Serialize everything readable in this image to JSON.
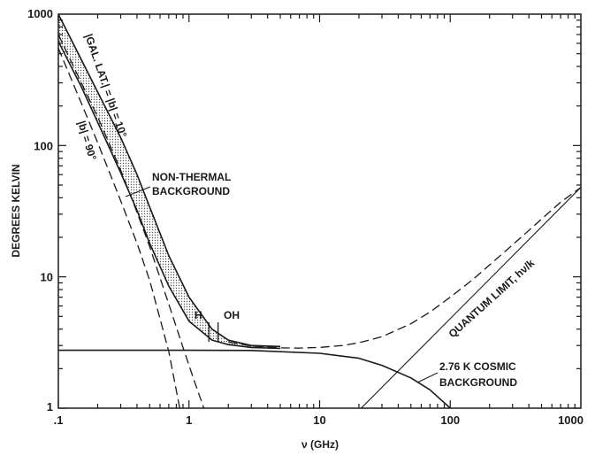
{
  "chart_data": {
    "type": "line",
    "xscale": "log",
    "yscale": "log",
    "xlim": [
      0.1,
      1000
    ],
    "ylim": [
      1,
      1000
    ],
    "xlabel": "ν (GHz)",
    "ylabel": "DEGREES KELVIN",
    "xticks": [
      {
        "value": 0.1,
        "label": ".1"
      },
      {
        "value": 1,
        "label": "1"
      },
      {
        "value": 10,
        "label": "10"
      },
      {
        "value": 100,
        "label": "100"
      },
      {
        "value": 1000,
        "label": "1000"
      }
    ],
    "yticks": [
      {
        "value": 1,
        "label": "1"
      },
      {
        "value": 10,
        "label": "10"
      },
      {
        "value": 100,
        "label": "100"
      },
      {
        "value": 1000,
        "label": "1000"
      }
    ],
    "grid": false,
    "series": [
      {
        "name": "|GAL. LAT.| = |b| = 10°",
        "style": "solid",
        "x": [
          0.1,
          0.15,
          0.2,
          0.3,
          0.4,
          0.5,
          0.7,
          1,
          1.5,
          2,
          3,
          5
        ],
        "y": [
          1000,
          450,
          255,
          115,
          60,
          34,
          14.5,
          7,
          4,
          3.3,
          3.0,
          2.95
        ]
      },
      {
        "name": "|b| = 90°",
        "style": "solid",
        "x": [
          0.1,
          0.15,
          0.2,
          0.3,
          0.4,
          0.5,
          0.7,
          1,
          1.5,
          2,
          3,
          5
        ],
        "y": [
          620,
          280,
          150,
          62,
          32,
          18,
          8.5,
          4.6,
          3.3,
          3.05,
          2.9,
          2.85
        ]
      },
      {
        "name": "NON-THERMAL BACKGROUND",
        "style": "dashed",
        "x": [
          0.1,
          0.15,
          0.2,
          0.3,
          0.4,
          0.5,
          0.7,
          0.9,
          1.1,
          1.3
        ],
        "y": [
          700,
          300,
          165,
          65,
          31,
          17,
          6.2,
          2.9,
          1.6,
          1
        ]
      },
      {
        "name": "NON-THERMAL BACKGROUND",
        "style": "dashed",
        "x": [
          0.1,
          0.15,
          0.2,
          0.3,
          0.4,
          0.5,
          0.6,
          0.7,
          0.85
        ],
        "y": [
          550,
          210,
          105,
          38,
          18,
          9.4,
          4.8,
          2.7,
          1
        ]
      },
      {
        "name": "2.76 K COSMIC BACKGROUND",
        "style": "solid",
        "x": [
          0.1,
          1,
          3,
          10,
          20,
          30,
          50,
          70,
          100
        ],
        "y": [
          2.76,
          2.76,
          2.75,
          2.62,
          2.4,
          2.12,
          1.7,
          1.38,
          1.0
        ]
      },
      {
        "name": "QUANTUM LIMIT, hν/k",
        "style": "solid",
        "x": [
          20.8,
          1000
        ],
        "y": [
          1.0,
          48
        ]
      },
      {
        "name": "",
        "style": "dashed",
        "x": [
          2,
          3,
          5,
          7,
          10,
          15,
          20,
          30,
          50,
          70,
          100,
          150,
          200,
          300,
          500,
          700,
          1000
        ],
        "y": [
          3.2,
          2.98,
          2.88,
          2.87,
          2.9,
          3.0,
          3.15,
          3.5,
          4.4,
          5.4,
          7.0,
          9.6,
          12.3,
          17.5,
          27.5,
          37,
          48
        ]
      }
    ],
    "markers": [
      {
        "label": "H",
        "x": 1.42
      },
      {
        "label": "OH",
        "x": 1.67
      }
    ],
    "annotations": {
      "gal_lat_10": "|GAL. LAT.| = |b| = 10°",
      "b_90": "|b| = 90°",
      "nonthermal_1": "NON-THERMAL",
      "nonthermal_2": "BACKGROUND",
      "h": "H",
      "oh": "OH",
      "quantum": "QUANTUM LIMIT, hν/k",
      "cosmic_1": "2.76 K COSMIC",
      "cosmic_2": "BACKGROUND"
    }
  }
}
